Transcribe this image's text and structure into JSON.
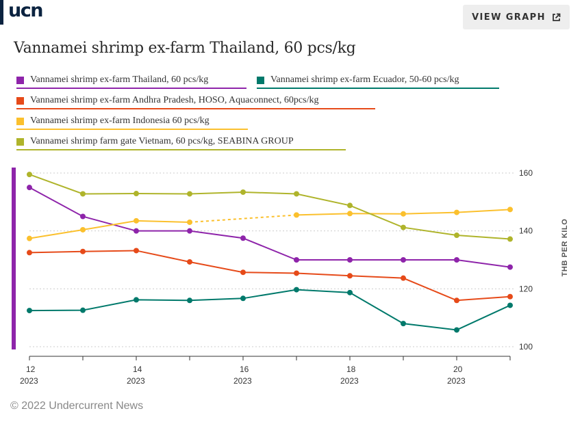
{
  "header": {
    "logo_text": "ucn",
    "view_button_label": "VIEW GRAPH",
    "view_button_icon": "external-link-icon"
  },
  "footer": {
    "credit": "© 2022 Undercurrent News"
  },
  "colors": {
    "highlight_bar": "#8e24aa",
    "grid": "#cccccc",
    "axis": "#333333"
  },
  "chart_data": {
    "type": "line",
    "title": "Vannamei shrimp ex-farm Thailand, 60 pcs/kg",
    "ylabel": "THB PER KILO",
    "xlabel": "",
    "ylim": [
      100,
      160
    ],
    "yticks": [
      100,
      120,
      140,
      160
    ],
    "xlim": [
      12,
      21
    ],
    "xticks": [
      {
        "value": 12,
        "week": "12",
        "year": "2023"
      },
      {
        "value": 14,
        "week": "14",
        "year": "2023"
      },
      {
        "value": 16,
        "week": "16",
        "year": "2023"
      },
      {
        "value": 18,
        "week": "18",
        "year": "2023"
      },
      {
        "value": 20,
        "week": "20",
        "year": "2023"
      }
    ],
    "grid": "horizontal dotted",
    "legend_position": "top",
    "series": [
      {
        "name": "Vannamei shrimp ex-farm Thailand, 60 pcs/kg",
        "color": "#8e24aa",
        "x": [
          12,
          13,
          14,
          15,
          16,
          17,
          18,
          19,
          20,
          21
        ],
        "y": [
          155,
          145,
          140,
          140,
          137.5,
          130,
          130,
          130,
          130,
          127.5
        ]
      },
      {
        "name": "Vannamei shrimp ex-farm Ecuador, 50-60 pcs/kg",
        "color": "#00796b",
        "x": [
          12,
          13,
          14,
          15,
          16,
          17,
          18,
          19,
          20,
          21
        ],
        "y": [
          112.5,
          112.6,
          116.2,
          116,
          116.7,
          119.7,
          118.7,
          108,
          105.8,
          114.3
        ]
      },
      {
        "name": "Vannamei shrimp ex-farm Andhra Pradesh, HOSO, Aquaconnect, 60pcs/kg",
        "color": "#e64a19",
        "x": [
          12,
          13,
          14,
          15,
          16,
          17,
          18,
          19,
          20,
          21
        ],
        "y": [
          132.5,
          132.9,
          133.2,
          129.3,
          125.7,
          125.4,
          124.5,
          123.7,
          116,
          117.3
        ]
      },
      {
        "name": "Vannamei shrimp ex-farm Indonesia 60 pcs/kg",
        "color": "#fbc02d",
        "x": [
          12,
          13,
          14,
          15,
          17,
          18,
          19,
          20,
          21
        ],
        "y": [
          137.4,
          140.4,
          143.5,
          143,
          145.5,
          146,
          145.9,
          146.4,
          147.4
        ],
        "gap_after_index": 3
      },
      {
        "name": "Vannamei shrimp farm gate Vietnam, 60 pcs/kg, SEABINA GROUP",
        "color": "#afb42b",
        "x": [
          12,
          13,
          14,
          15,
          16,
          17,
          18,
          19,
          20,
          21
        ],
        "y": [
          159.5,
          152.8,
          152.9,
          152.8,
          153.4,
          152.8,
          148.8,
          141.2,
          138.5,
          137.2
        ]
      }
    ]
  }
}
